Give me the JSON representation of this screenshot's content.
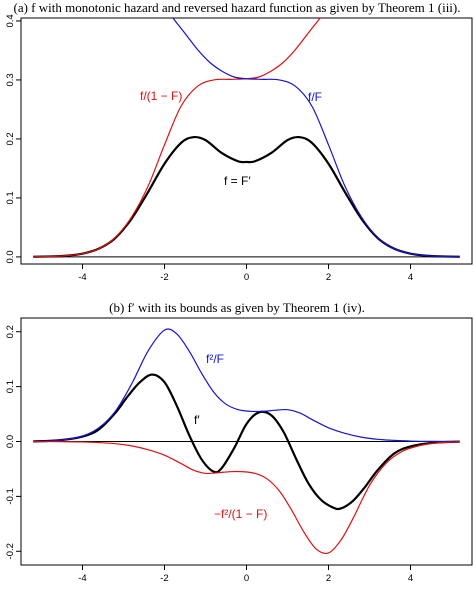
{
  "figure": {
    "caption_a": "(a) f with monotonic hazard and reversed hazard function as given by Theorem 1 (iii).",
    "caption_b": "(b) f′ with its bounds as given by Theorem 1 (iv)."
  },
  "chart_data": [
    {
      "type": "line",
      "title": "(a) f with monotonic hazard and reversed hazard function as given by Theorem 1 (iii).",
      "xlim": [
        -5.5,
        5.5
      ],
      "ylim": [
        -0.012,
        0.405
      ],
      "xticks": [
        -4,
        -2,
        0,
        2,
        4
      ],
      "xtick_labels": [
        "-4",
        "-2",
        "0",
        "2",
        "4"
      ],
      "yticks": [
        0.0,
        0.1,
        0.2,
        0.3,
        0.4
      ],
      "ytick_labels": [
        "0.0",
        "0.1",
        "0.2",
        "0.3",
        "0.4"
      ],
      "grid": false,
      "baseline": 0,
      "annotations": [
        "f/(1 − F)",
        "f/F",
        "f = F′"
      ],
      "series": [
        {
          "label": "f = F′",
          "color": "#000000",
          "x": [
            -5.2,
            -4.8,
            -4.4,
            -4,
            -3.6,
            -3.2,
            -2.8,
            -2.4,
            -2,
            -1.6,
            -1.3,
            -1,
            -0.6,
            -0.2,
            0,
            0.2,
            0.6,
            1,
            1.3,
            1.6,
            2,
            2.4,
            2.8,
            3.2,
            3.6,
            4,
            4.4,
            4.8,
            5.2
          ],
          "y": [
            0.0003,
            0.0008,
            0.002,
            0.0055,
            0.014,
            0.032,
            0.065,
            0.11,
            0.158,
            0.193,
            0.203,
            0.198,
            0.176,
            0.162,
            0.161,
            0.162,
            0.176,
            0.198,
            0.203,
            0.193,
            0.158,
            0.11,
            0.065,
            0.032,
            0.014,
            0.0055,
            0.002,
            0.0008,
            0.0003
          ]
        },
        {
          "label": "f/(1 − F)",
          "color": "#e01010",
          "x": [
            -5.2,
            -4.8,
            -4.4,
            -4,
            -3.6,
            -3.2,
            -2.8,
            -2.4,
            -2,
            -1.6,
            -1.2,
            -0.8,
            -0.4,
            0,
            0.3,
            0.6,
            0.9,
            1.2,
            1.5,
            1.75,
            1.9
          ],
          "y": [
            0.0003,
            0.0008,
            0.002,
            0.0055,
            0.014,
            0.033,
            0.068,
            0.12,
            0.19,
            0.255,
            0.289,
            0.3,
            0.301,
            0.302,
            0.305,
            0.315,
            0.33,
            0.352,
            0.379,
            0.401,
            0.415
          ]
        },
        {
          "label": "f/F",
          "color": "#1515d0",
          "x": [
            -1.9,
            -1.75,
            -1.5,
            -1.2,
            -0.9,
            -0.6,
            -0.3,
            0,
            0.4,
            0.8,
            1.2,
            1.6,
            2,
            2.4,
            2.8,
            3.2,
            3.6,
            4,
            4.4,
            4.8,
            5.2
          ],
          "y": [
            0.415,
            0.401,
            0.379,
            0.352,
            0.33,
            0.315,
            0.305,
            0.302,
            0.301,
            0.3,
            0.289,
            0.255,
            0.19,
            0.12,
            0.068,
            0.033,
            0.014,
            0.0055,
            0.002,
            0.0008,
            0.0003
          ]
        }
      ]
    },
    {
      "type": "line",
      "title": "(b) f′ with its bounds as given by Theorem 1 (iv).",
      "xlim": [
        -5.5,
        5.5
      ],
      "ylim": [
        -0.225,
        0.225
      ],
      "xticks": [
        -4,
        -2,
        0,
        2,
        4
      ],
      "xtick_labels": [
        "-4",
        "-2",
        "0",
        "2",
        "4"
      ],
      "yticks": [
        -0.2,
        -0.1,
        0.0,
        0.1,
        0.2
      ],
      "ytick_labels": [
        "-0.2",
        "-0.1",
        "0.0",
        "0.1",
        "0.2"
      ],
      "grid": false,
      "baseline": 0,
      "annotations": [
        "f²/F",
        "f′",
        "−f²/(1 − F)"
      ],
      "series": [
        {
          "label": "f′",
          "color": "#000000",
          "x": [
            -5.2,
            -4.6,
            -4,
            -3.6,
            -3.2,
            -2.9,
            -2.6,
            -2.3,
            -2,
            -1.7,
            -1.4,
            -1.1,
            -0.8,
            -0.6,
            -0.3,
            0,
            0.3,
            0.6,
            0.9,
            1.2,
            1.5,
            1.8,
            2.1,
            2.3,
            2.6,
            2.9,
            3.2,
            3.6,
            4,
            4.6,
            5.2
          ],
          "y": [
            0.0002,
            0.002,
            0.009,
            0.022,
            0.052,
            0.082,
            0.108,
            0.122,
            0.108,
            0.065,
            0.012,
            -0.032,
            -0.055,
            -0.048,
            -0.012,
            0.032,
            0.053,
            0.048,
            0.018,
            -0.03,
            -0.075,
            -0.105,
            -0.12,
            -0.122,
            -0.108,
            -0.082,
            -0.052,
            -0.022,
            -0.009,
            -0.002,
            -0.0002
          ]
        },
        {
          "label": "f²/F",
          "color": "#1515d0",
          "x": [
            -5.2,
            -4.6,
            -4,
            -3.6,
            -3.2,
            -2.8,
            -2.4,
            -2,
            -1.7,
            -1.4,
            -1.1,
            -0.8,
            -0.5,
            -0.2,
            0.1,
            0.4,
            0.7,
            1,
            1.3,
            1.6,
            2,
            2.4,
            2.8,
            3.2,
            3.6,
            4,
            4.6,
            5.2
          ],
          "y": [
            0.0002,
            0.002,
            0.01,
            0.025,
            0.055,
            0.105,
            0.165,
            0.203,
            0.196,
            0.165,
            0.125,
            0.09,
            0.068,
            0.058,
            0.055,
            0.055,
            0.057,
            0.058,
            0.052,
            0.04,
            0.025,
            0.015,
            0.008,
            0.004,
            0.002,
            0.0008,
            0.0002,
            0.0001
          ]
        },
        {
          "label": "−f²/(1 − F)",
          "color": "#e01010",
          "x": [
            -5.2,
            -4.6,
            -4,
            -3.6,
            -3.2,
            -2.8,
            -2.4,
            -2,
            -1.6,
            -1.3,
            -1,
            -0.7,
            -0.4,
            -0.1,
            0.2,
            0.5,
            0.8,
            1.1,
            1.4,
            1.7,
            2,
            2.3,
            2.6,
            3,
            3.4,
            3.8,
            4.2,
            4.6,
            5.2
          ],
          "y": [
            -0.0001,
            -0.0002,
            -0.0008,
            -0.002,
            -0.004,
            -0.008,
            -0.015,
            -0.025,
            -0.04,
            -0.052,
            -0.058,
            -0.057,
            -0.055,
            -0.055,
            -0.058,
            -0.068,
            -0.09,
            -0.125,
            -0.165,
            -0.196,
            -0.203,
            -0.18,
            -0.14,
            -0.08,
            -0.04,
            -0.018,
            -0.008,
            -0.003,
            -0.0004
          ]
        }
      ]
    }
  ]
}
